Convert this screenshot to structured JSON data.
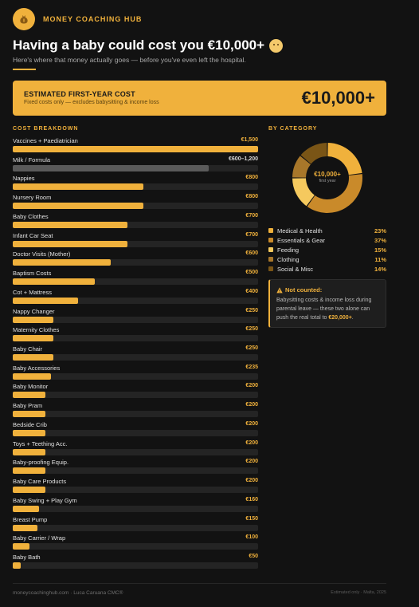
{
  "brand": {
    "name": "MONEY COACHING HUB"
  },
  "header": {
    "title": "Having a baby could cost you €10,000+",
    "subtitle": "Here's where that money actually goes — before you've even left the hospital."
  },
  "summary": {
    "label": "ESTIMATED FIRST-YEAR COST",
    "sublabel": "Fixed costs only — excludes babysitting & income loss",
    "value": "€10,000+"
  },
  "sections": {
    "breakdown_title": "COST BREAKDOWN",
    "category_title": "BY CATEGORY"
  },
  "chart_data": [
    {
      "type": "bar",
      "orientation": "horizontal",
      "title": "COST BREAKDOWN",
      "xlim": [
        0,
        1500
      ],
      "categories": [
        "Vaccines + Paediatrician",
        "Milk / Formula",
        "Nappies",
        "Nursery Room",
        "Baby Clothes",
        "Infant Car Seat",
        "Doctor Visits (Mother)",
        "Baptism Costs",
        "Cot + Mattress",
        "Nappy Changer",
        "Maternity Clothes",
        "Baby Chair",
        "Baby Accessories",
        "Baby Monitor",
        "Baby Pram",
        "Bedside Crib",
        "Toys + Teething Acc.",
        "Baby-proofing Equip.",
        "Baby Care Products",
        "Baby Swing + Play Gym",
        "Breast Pump",
        "Baby Carrier / Wrap",
        "Baby Bath"
      ],
      "values": [
        1500,
        1200,
        800,
        800,
        700,
        700,
        600,
        500,
        400,
        250,
        250,
        250,
        235,
        200,
        200,
        200,
        200,
        200,
        200,
        160,
        150,
        100,
        50
      ],
      "value_labels": [
        "€1,500",
        "€600–1,200",
        "€800",
        "€800",
        "€700",
        "€700",
        "€600",
        "€500",
        "€400",
        "€250",
        "€250",
        "€250",
        "€235",
        "€200",
        "€200",
        "€200",
        "€200",
        "€200",
        "€200",
        "€160",
        "€150",
        "€100",
        "€50"
      ],
      "highlight_index": 1,
      "colors": {
        "bar": "#f0b13c",
        "highlight": "#5a5a5a",
        "track": "#242424"
      }
    },
    {
      "type": "pie",
      "style": "donut",
      "title": "BY CATEGORY",
      "center_label": "€10,000+",
      "center_sublabel": "first year",
      "categories": [
        "Medical & Health",
        "Essentials & Gear",
        "Feeding",
        "Clothing",
        "Social & Misc"
      ],
      "values": [
        23,
        37,
        15,
        11,
        14
      ],
      "value_labels": [
        "23%",
        "37%",
        "15%",
        "11%",
        "14%"
      ],
      "colors": [
        "#f0b13c",
        "#c98a2a",
        "#f5c95e",
        "#a8772a",
        "#7a5516"
      ]
    }
  ],
  "note": {
    "icon": "warning-icon",
    "title": "Not counted:",
    "text_before": "Babysitting costs & income loss during parental leave — these two alone can push the real total to ",
    "highlight": "€20,000+",
    "text_after": "."
  },
  "footer": {
    "left": "moneycoachinghub.com · Luca Caruana CMC®",
    "right": "Estimated only · Malta, 2025"
  }
}
